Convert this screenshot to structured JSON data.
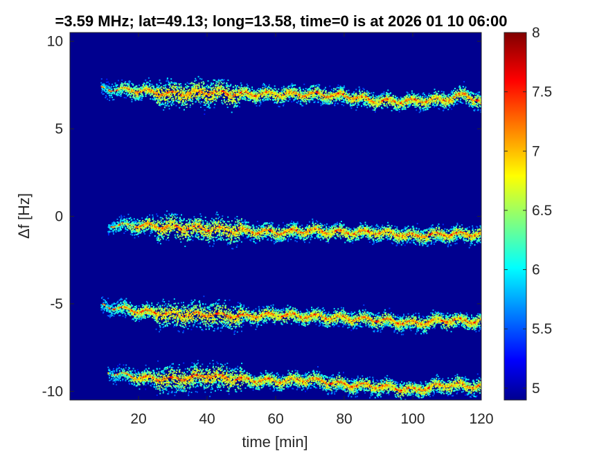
{
  "chart_data": {
    "type": "heatmap",
    "title": "=3.59 MHz;  lat=49.13; long=13.58, time=0 is at 2026 01 10 06:00",
    "xlabel": "time [min]",
    "ylabel": "Δf [Hz]",
    "xlim": [
      0,
      120
    ],
    "ylim": [
      -10.5,
      10.5
    ],
    "x_ticks": [
      20,
      40,
      60,
      80,
      100,
      120
    ],
    "y_ticks": [
      10,
      5,
      0,
      -5,
      -10
    ],
    "colorbar": {
      "range": [
        4.9,
        8
      ],
      "ticks": [
        8,
        7.5,
        7,
        6.5,
        6,
        5.5,
        5
      ],
      "colormap": "jet"
    },
    "background_color": "#00008f",
    "grid": false,
    "bands": [
      {
        "start_time": 9,
        "points": [
          [
            9,
            7.3
          ],
          [
            20,
            7.2
          ],
          [
            30,
            7.0
          ],
          [
            40,
            7.1
          ],
          [
            50,
            7.0
          ],
          [
            60,
            7.0
          ],
          [
            70,
            7.0
          ],
          [
            80,
            6.9
          ],
          [
            90,
            6.6
          ],
          [
            100,
            6.6
          ],
          [
            110,
            6.7
          ],
          [
            115,
            7.0
          ],
          [
            120,
            6.5
          ]
        ]
      },
      {
        "start_time": 11,
        "points": [
          [
            11,
            -0.5
          ],
          [
            20,
            -0.5
          ],
          [
            30,
            -0.6
          ],
          [
            40,
            -0.7
          ],
          [
            50,
            -0.8
          ],
          [
            60,
            -0.9
          ],
          [
            70,
            -0.8
          ],
          [
            80,
            -0.9
          ],
          [
            90,
            -0.9
          ],
          [
            100,
            -1.1
          ],
          [
            110,
            -1.0
          ],
          [
            120,
            -1.0
          ]
        ]
      },
      {
        "start_time": 9,
        "points": [
          [
            9,
            -5.1
          ],
          [
            20,
            -5.4
          ],
          [
            30,
            -5.6
          ],
          [
            40,
            -5.6
          ],
          [
            50,
            -5.7
          ],
          [
            60,
            -5.6
          ],
          [
            70,
            -5.7
          ],
          [
            80,
            -5.8
          ],
          [
            90,
            -5.9
          ],
          [
            100,
            -6.1
          ],
          [
            110,
            -5.9
          ],
          [
            120,
            -6.0
          ]
        ]
      },
      {
        "start_time": 11,
        "points": [
          [
            11,
            -8.9
          ],
          [
            20,
            -9.2
          ],
          [
            30,
            -9.3
          ],
          [
            40,
            -9.1
          ],
          [
            50,
            -9.3
          ],
          [
            60,
            -9.4
          ],
          [
            70,
            -9.3
          ],
          [
            80,
            -9.6
          ],
          [
            90,
            -9.7
          ],
          [
            100,
            -9.9
          ],
          [
            110,
            -9.6
          ],
          [
            120,
            -9.7
          ]
        ]
      }
    ]
  }
}
